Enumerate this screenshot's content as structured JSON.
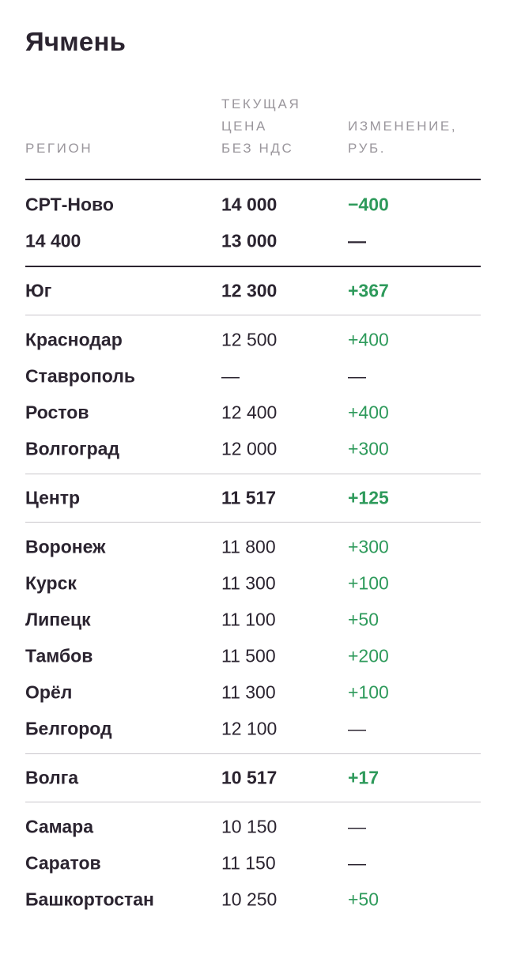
{
  "title": "Ячмень",
  "columns": {
    "region": "РЕГИОН",
    "price": "ТЕКУЩАЯ\nЦЕНА\nБЕЗ НДС",
    "change": "ИЗМЕНЕНИЕ,\nРУБ."
  },
  "colors": {
    "positive": "#2e9a5b",
    "text": "#2b2430",
    "muted": "#9a969c"
  },
  "top": [
    {
      "region": "СРТ-Ново",
      "price": "14 000",
      "change": "−400"
    },
    {
      "region": "14 400",
      "price": "13 000",
      "change": "—"
    }
  ],
  "south": {
    "region": "Юг",
    "price": "12 300",
    "change": "+367"
  },
  "south_rows": [
    {
      "region": "Краснодар",
      "price": "12 500",
      "change": "+400"
    },
    {
      "region": "Ставрополь",
      "price": "—",
      "change": "—"
    },
    {
      "region": "Ростов",
      "price": "12 400",
      "change": "+400"
    },
    {
      "region": "Волгоград",
      "price": "12 000",
      "change": "+300"
    }
  ],
  "center": {
    "region": "Центр",
    "price": "11 517",
    "change": "+125"
  },
  "center_rows": [
    {
      "region": "Воронеж",
      "price": "11 800",
      "change": "+300"
    },
    {
      "region": "Курск",
      "price": "11 300",
      "change": "+100"
    },
    {
      "region": "Липецк",
      "price": "11 100",
      "change": "+50"
    },
    {
      "region": "Тамбов",
      "price": "11 500",
      "change": "+200"
    },
    {
      "region": "Орёл",
      "price": "11 300",
      "change": "+100"
    },
    {
      "region": "Белгород",
      "price": "12 100",
      "change": "—"
    }
  ],
  "volga": {
    "region": "Волга",
    "price": "10 517",
    "change": "+17"
  },
  "volga_rows": [
    {
      "region": "Самара",
      "price": "10 150",
      "change": "—"
    },
    {
      "region": "Саратов",
      "price": "11 150",
      "change": "—"
    },
    {
      "region": "Башкортостан",
      "price": "10 250",
      "change": "+50"
    }
  ]
}
